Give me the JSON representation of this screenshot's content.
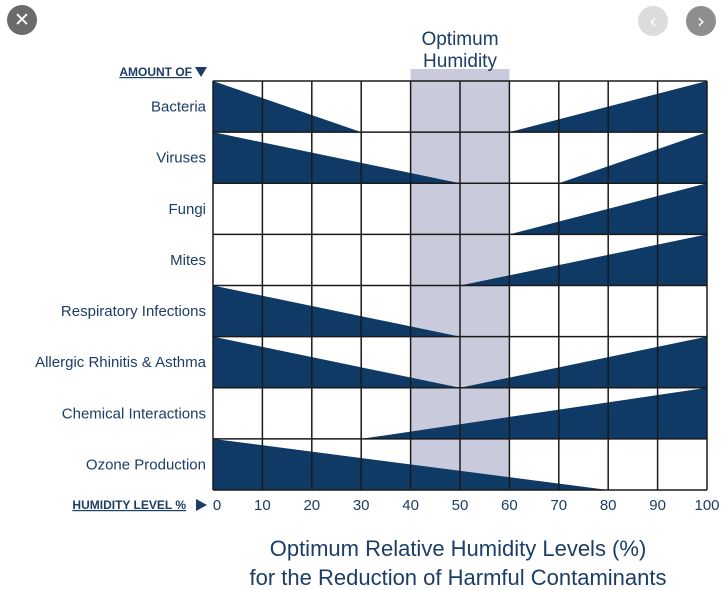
{
  "viewer": {
    "close_icon": "close-icon",
    "prev_icon": "chevron-left-icon",
    "next_icon": "chevron-right-icon"
  },
  "chart_data": {
    "type": "range-wedge",
    "title_lines": [
      "Optimum Relative Humidity Levels (%)",
      "for the Reduction of Harmful Contaminants"
    ],
    "optimum_label_lines": [
      "Optimum",
      "Humidity"
    ],
    "optimum_range": [
      40,
      60
    ],
    "row_axis_label": "AMOUNT OF",
    "x_axis_label": "HUMIDITY LEVEL %",
    "xlim": [
      0,
      100
    ],
    "x_ticks": [
      0,
      10,
      20,
      30,
      40,
      50,
      60,
      70,
      80,
      90,
      100
    ],
    "grid": true,
    "colors": {
      "wedge": "#0f3a66",
      "optimum": "#c9cbdc",
      "grid": "#1a1a1a",
      "label": "#1c3d66"
    },
    "rows": [
      {
        "label": "Bacteria",
        "wedges": [
          {
            "from": 0,
            "to": 30,
            "high": "left"
          },
          {
            "from": 60,
            "to": 100,
            "high": "right"
          }
        ]
      },
      {
        "label": "Viruses",
        "wedges": [
          {
            "from": 0,
            "to": 50,
            "high": "left"
          },
          {
            "from": 70,
            "to": 100,
            "high": "right"
          }
        ]
      },
      {
        "label": "Fungi",
        "wedges": [
          {
            "from": 60,
            "to": 100,
            "high": "right"
          }
        ]
      },
      {
        "label": "Mites",
        "wedges": [
          {
            "from": 50,
            "to": 100,
            "high": "right"
          }
        ]
      },
      {
        "label": "Respiratory Infections",
        "wedges": [
          {
            "from": 0,
            "to": 50,
            "high": "left"
          }
        ]
      },
      {
        "label": "Allergic Rhinitis & Asthma",
        "wedges": [
          {
            "from": 0,
            "to": 50,
            "high": "left"
          },
          {
            "from": 50,
            "to": 100,
            "high": "right"
          }
        ]
      },
      {
        "label": "Chemical Interactions",
        "wedges": [
          {
            "from": 30,
            "to": 100,
            "high": "right"
          }
        ]
      },
      {
        "label": "Ozone Production",
        "wedges": [
          {
            "from": 0,
            "to": 80,
            "high": "left"
          }
        ]
      }
    ]
  }
}
